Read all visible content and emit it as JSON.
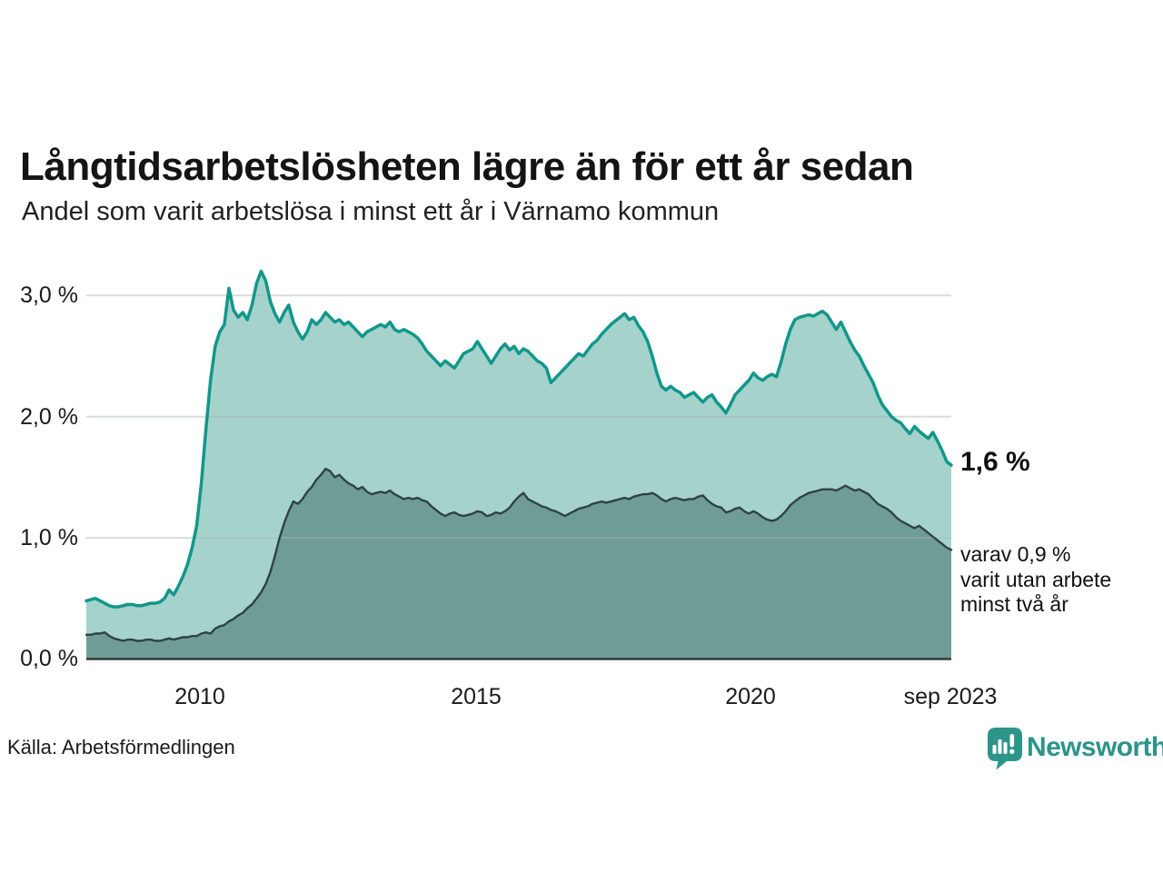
{
  "header": {
    "title": "Långtidsarbetslösheten lägre än för ett år sedan",
    "subtitle": "Andel som varit arbetslösa i minst ett år i Värnamo kommun"
  },
  "chart_data": {
    "type": "area",
    "x_unit": "month",
    "x_range": [
      "2008-01",
      "2023-09"
    ],
    "x_tick_labels": [
      "2010",
      "2015",
      "2020",
      "sep 2023"
    ],
    "y_tick_labels": [
      "0,0 %",
      "1,0 %",
      "2,0 %",
      "3,0 %"
    ],
    "ylim": [
      0,
      3.4
    ],
    "grid": "horizontal",
    "background": "#ffffff",
    "series": [
      {
        "name": "andel arbetslösa minst ett år",
        "line_color": "#12978a",
        "fill_color": "#a5d3cc",
        "end_value": 1.6,
        "values": [
          0.48,
          0.49,
          0.5,
          0.48,
          0.46,
          0.44,
          0.43,
          0.43,
          0.44,
          0.45,
          0.45,
          0.44,
          0.44,
          0.45,
          0.46,
          0.46,
          0.47,
          0.5,
          0.57,
          0.53,
          0.6,
          0.68,
          0.78,
          0.92,
          1.1,
          1.45,
          1.9,
          2.3,
          2.58,
          2.7,
          2.76,
          3.06,
          2.88,
          2.82,
          2.86,
          2.8,
          2.92,
          3.1,
          3.2,
          3.12,
          2.95,
          2.85,
          2.78,
          2.86,
          2.92,
          2.78,
          2.7,
          2.64,
          2.7,
          2.8,
          2.76,
          2.8,
          2.86,
          2.82,
          2.78,
          2.8,
          2.76,
          2.78,
          2.74,
          2.7,
          2.66,
          2.7,
          2.72,
          2.74,
          2.76,
          2.74,
          2.78,
          2.72,
          2.7,
          2.72,
          2.7,
          2.68,
          2.65,
          2.6,
          2.54,
          2.5,
          2.46,
          2.42,
          2.46,
          2.43,
          2.4,
          2.46,
          2.52,
          2.54,
          2.56,
          2.62,
          2.56,
          2.5,
          2.44,
          2.5,
          2.56,
          2.6,
          2.55,
          2.58,
          2.52,
          2.56,
          2.54,
          2.5,
          2.46,
          2.44,
          2.4,
          2.28,
          2.32,
          2.36,
          2.4,
          2.44,
          2.48,
          2.52,
          2.5,
          2.55,
          2.6,
          2.63,
          2.68,
          2.72,
          2.76,
          2.79,
          2.82,
          2.85,
          2.8,
          2.82,
          2.75,
          2.7,
          2.62,
          2.5,
          2.36,
          2.25,
          2.22,
          2.25,
          2.22,
          2.2,
          2.16,
          2.18,
          2.2,
          2.16,
          2.12,
          2.16,
          2.18,
          2.12,
          2.08,
          2.03,
          2.1,
          2.18,
          2.22,
          2.26,
          2.3,
          2.36,
          2.32,
          2.3,
          2.33,
          2.35,
          2.33,
          2.45,
          2.6,
          2.72,
          2.8,
          2.82,
          2.83,
          2.84,
          2.83,
          2.85,
          2.87,
          2.84,
          2.78,
          2.72,
          2.78,
          2.7,
          2.62,
          2.55,
          2.5,
          2.42,
          2.35,
          2.28,
          2.18,
          2.1,
          2.05,
          2.0,
          1.97,
          1.95,
          1.9,
          1.86,
          1.92,
          1.88,
          1.85,
          1.82,
          1.87,
          1.8,
          1.72,
          1.63,
          1.6
        ]
      },
      {
        "name": "varav utan arbete minst två år",
        "line_color": "#2f4340",
        "fill_color": "#6f9d96",
        "end_value": 0.9,
        "values": [
          0.2,
          0.2,
          0.21,
          0.21,
          0.22,
          0.19,
          0.17,
          0.16,
          0.15,
          0.16,
          0.16,
          0.15,
          0.15,
          0.16,
          0.16,
          0.15,
          0.15,
          0.16,
          0.17,
          0.16,
          0.17,
          0.18,
          0.18,
          0.19,
          0.19,
          0.21,
          0.22,
          0.21,
          0.25,
          0.27,
          0.28,
          0.31,
          0.33,
          0.36,
          0.38,
          0.42,
          0.45,
          0.5,
          0.55,
          0.62,
          0.72,
          0.85,
          1.0,
          1.12,
          1.22,
          1.3,
          1.28,
          1.32,
          1.38,
          1.42,
          1.48,
          1.52,
          1.57,
          1.55,
          1.5,
          1.52,
          1.48,
          1.45,
          1.43,
          1.4,
          1.42,
          1.38,
          1.36,
          1.37,
          1.38,
          1.37,
          1.39,
          1.36,
          1.34,
          1.32,
          1.33,
          1.32,
          1.33,
          1.31,
          1.3,
          1.26,
          1.23,
          1.2,
          1.18,
          1.2,
          1.21,
          1.19,
          1.18,
          1.19,
          1.2,
          1.22,
          1.21,
          1.18,
          1.19,
          1.21,
          1.2,
          1.22,
          1.25,
          1.3,
          1.34,
          1.37,
          1.32,
          1.3,
          1.28,
          1.26,
          1.25,
          1.23,
          1.22,
          1.2,
          1.18,
          1.2,
          1.22,
          1.24,
          1.25,
          1.26,
          1.28,
          1.29,
          1.3,
          1.29,
          1.3,
          1.31,
          1.32,
          1.33,
          1.32,
          1.34,
          1.35,
          1.36,
          1.36,
          1.37,
          1.35,
          1.32,
          1.3,
          1.32,
          1.33,
          1.32,
          1.31,
          1.32,
          1.32,
          1.34,
          1.35,
          1.31,
          1.28,
          1.26,
          1.25,
          1.21,
          1.22,
          1.24,
          1.25,
          1.22,
          1.2,
          1.22,
          1.2,
          1.17,
          1.15,
          1.14,
          1.15,
          1.18,
          1.22,
          1.27,
          1.3,
          1.33,
          1.35,
          1.37,
          1.38,
          1.39,
          1.4,
          1.4,
          1.4,
          1.39,
          1.41,
          1.43,
          1.41,
          1.39,
          1.4,
          1.38,
          1.36,
          1.32,
          1.28,
          1.26,
          1.24,
          1.21,
          1.17,
          1.14,
          1.12,
          1.1,
          1.08,
          1.1,
          1.07,
          1.04,
          1.01,
          0.98,
          0.95,
          0.92,
          0.9
        ]
      }
    ],
    "annotations": {
      "end_value_label": "1,6 %",
      "note_lines": [
        "varav 0,9 %",
        "varit utan arbete",
        "minst två år"
      ]
    }
  },
  "footer": {
    "source": "Källa: Arbetsförmedlingen",
    "logo_text": "Newsworthy",
    "logo_color": "#2d948a"
  }
}
